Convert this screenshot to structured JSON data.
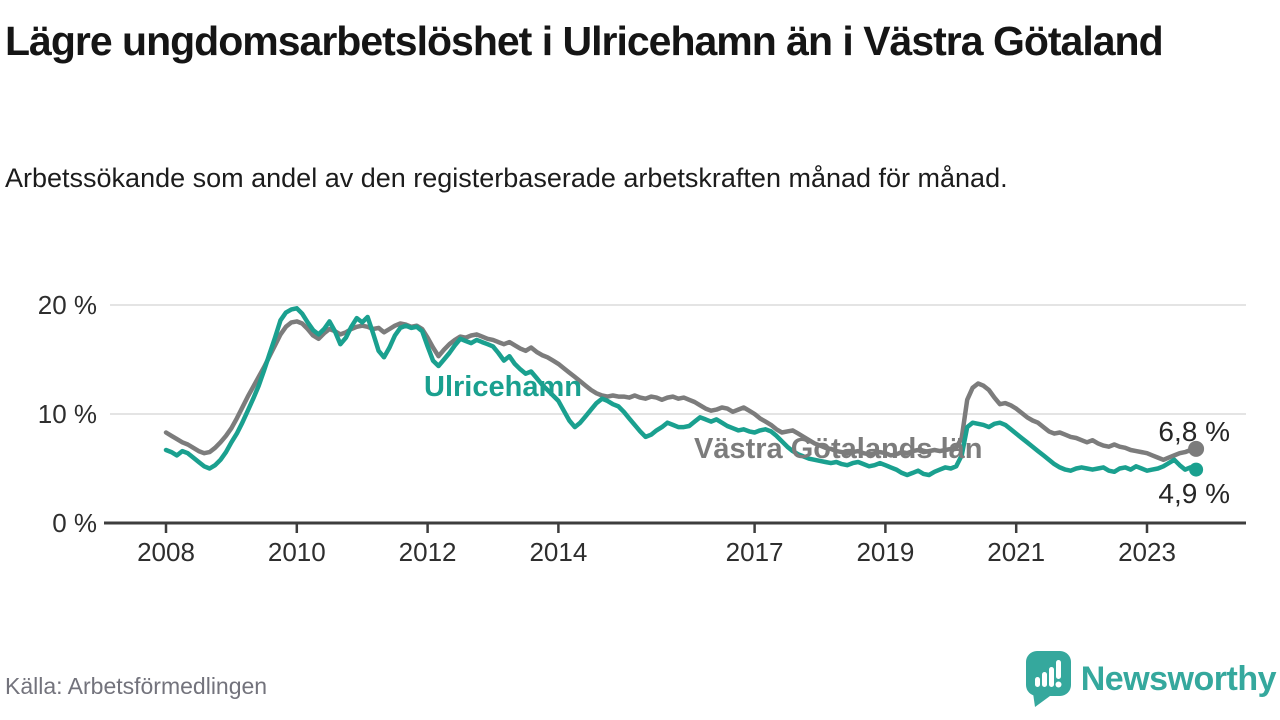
{
  "header": {
    "title": "Lägre ungdomsarbetslöshet i Ulricehamn än i Västra Götaland",
    "subtitle": "Arbetssökande som andel av den registerbaserade arbetskraften månad för månad."
  },
  "chart_data": {
    "type": "line",
    "title": "Lägre ungdomsarbetslöshet i Ulricehamn än i Västra Götaland",
    "subtitle": "Arbetssökande som andel av den registerbaserade arbetskraften månad för månad.",
    "unit": "%",
    "x_start": 2008,
    "x_frequency": "monthly",
    "ylim": [
      0,
      21.5
    ],
    "grid": "horizontal",
    "legend_position": "inline-labels",
    "yticks": [
      {
        "value": 20,
        "label": "20 %"
      },
      {
        "value": 10,
        "label": "10 %"
      },
      {
        "value": 0,
        "label": "0 %"
      }
    ],
    "xticks": [
      {
        "year": 2008,
        "label": "2008"
      },
      {
        "year": 2010,
        "label": "2010"
      },
      {
        "year": 2012,
        "label": "2012"
      },
      {
        "year": 2014,
        "label": "2014"
      },
      {
        "year": 2017,
        "label": "2017"
      },
      {
        "year": 2019,
        "label": "2019"
      },
      {
        "year": 2021,
        "label": "2021"
      },
      {
        "year": 2023,
        "label": "2023"
      }
    ],
    "series": [
      {
        "name": "Västra Götalands län",
        "color": "#7c7c7c",
        "end_label": "6,8 %",
        "last_value": 6.8,
        "values": [
          8.3,
          8.0,
          7.7,
          7.4,
          7.2,
          6.9,
          6.6,
          6.4,
          6.5,
          6.9,
          7.4,
          8.0,
          8.7,
          9.6,
          10.6,
          11.6,
          12.5,
          13.4,
          14.3,
          15.3,
          16.3,
          17.3,
          18.0,
          18.4,
          18.5,
          18.3,
          17.8,
          17.2,
          16.9,
          17.4,
          17.8,
          17.6,
          17.3,
          17.5,
          17.8,
          18.0,
          18.1,
          18.0,
          17.8,
          17.9,
          17.5,
          17.8,
          18.1,
          18.3,
          18.2,
          18.0,
          18.1,
          17.8,
          17.0,
          16.1,
          15.3,
          15.9,
          16.4,
          16.8,
          17.1,
          17.0,
          17.2,
          17.3,
          17.1,
          16.9,
          16.8,
          16.6,
          16.4,
          16.6,
          16.3,
          16.0,
          15.8,
          16.1,
          15.7,
          15.4,
          15.2,
          14.9,
          14.6,
          14.2,
          13.8,
          13.4,
          13.0,
          12.6,
          12.2,
          11.9,
          11.7,
          11.6,
          11.7,
          11.6,
          11.6,
          11.5,
          11.7,
          11.5,
          11.4,
          11.6,
          11.5,
          11.3,
          11.5,
          11.6,
          11.4,
          11.5,
          11.3,
          11.1,
          10.8,
          10.5,
          10.3,
          10.4,
          10.6,
          10.5,
          10.2,
          10.4,
          10.6,
          10.3,
          10.0,
          9.6,
          9.3,
          9.0,
          8.6,
          8.3,
          8.4,
          8.5,
          8.2,
          7.9,
          7.6,
          7.3,
          7.1,
          6.9,
          6.8,
          6.6,
          6.5,
          6.4,
          6.5,
          6.6,
          6.4,
          6.3,
          6.4,
          6.5,
          6.4,
          6.2,
          6.3,
          6.5,
          6.4,
          6.6,
          6.7,
          6.5,
          6.6,
          6.7,
          6.6,
          6.7,
          6.8,
          6.9,
          7.8,
          11.3,
          12.4,
          12.8,
          12.6,
          12.2,
          11.5,
          10.9,
          11.0,
          10.8,
          10.5,
          10.1,
          9.7,
          9.4,
          9.2,
          8.8,
          8.4,
          8.2,
          8.3,
          8.1,
          7.9,
          7.8,
          7.6,
          7.4,
          7.6,
          7.3,
          7.1,
          7.0,
          7.2,
          7.0,
          6.9,
          6.7,
          6.6,
          6.5,
          6.4,
          6.2,
          6.0,
          5.8,
          6.0,
          6.2,
          6.4,
          6.5,
          6.7,
          6.8
        ]
      },
      {
        "name": "Ulricehamn",
        "color": "#1aa08f",
        "end_label": "4,9 %",
        "last_value": 4.9,
        "values": [
          6.7,
          6.5,
          6.2,
          6.6,
          6.4,
          6.0,
          5.6,
          5.2,
          5.0,
          5.3,
          5.8,
          6.5,
          7.4,
          8.2,
          9.2,
          10.3,
          11.4,
          12.6,
          14.0,
          15.5,
          17.0,
          18.6,
          19.3,
          19.6,
          19.7,
          19.2,
          18.4,
          17.7,
          17.3,
          17.8,
          18.5,
          17.6,
          16.4,
          17.0,
          18.0,
          18.8,
          18.4,
          18.9,
          17.4,
          15.8,
          15.2,
          16.1,
          17.2,
          17.9,
          18.1,
          17.9,
          18.0,
          17.6,
          16.2,
          14.9,
          14.4,
          15.0,
          15.6,
          16.3,
          16.9,
          16.7,
          16.5,
          16.8,
          16.6,
          16.4,
          16.2,
          15.6,
          14.9,
          15.3,
          14.6,
          14.1,
          13.7,
          13.9,
          13.3,
          12.7,
          12.2,
          11.7,
          11.2,
          10.3,
          9.4,
          8.8,
          9.2,
          9.8,
          10.4,
          11.0,
          11.4,
          11.2,
          10.9,
          10.7,
          10.2,
          9.6,
          9.0,
          8.4,
          7.9,
          8.1,
          8.5,
          8.8,
          9.2,
          9.0,
          8.8,
          8.8,
          8.9,
          9.3,
          9.7,
          9.5,
          9.3,
          9.5,
          9.2,
          8.9,
          8.7,
          8.5,
          8.6,
          8.4,
          8.3,
          8.5,
          8.6,
          8.4,
          8.0,
          7.5,
          7.0,
          6.6,
          6.3,
          6.1,
          5.9,
          5.8,
          5.7,
          5.6,
          5.5,
          5.6,
          5.4,
          5.3,
          5.5,
          5.6,
          5.4,
          5.2,
          5.3,
          5.5,
          5.3,
          5.1,
          4.9,
          4.6,
          4.4,
          4.6,
          4.8,
          4.5,
          4.4,
          4.7,
          4.9,
          5.1,
          5.0,
          5.2,
          6.2,
          8.8,
          9.2,
          9.1,
          9.0,
          8.8,
          9.1,
          9.2,
          9.0,
          8.6,
          8.2,
          7.8,
          7.4,
          7.0,
          6.6,
          6.2,
          5.8,
          5.4,
          5.1,
          4.9,
          4.8,
          5.0,
          5.1,
          5.0,
          4.9,
          5.0,
          5.1,
          4.8,
          4.7,
          5.0,
          5.1,
          4.9,
          5.2,
          5.0,
          4.8,
          4.9,
          5.0,
          5.2,
          5.5,
          5.8,
          5.3,
          4.9,
          5.1,
          4.9
        ]
      }
    ]
  },
  "footer": {
    "source": "Källa: Arbetsförmedlingen",
    "brand": "Newsworthy",
    "brand_color": "#35a89d"
  }
}
